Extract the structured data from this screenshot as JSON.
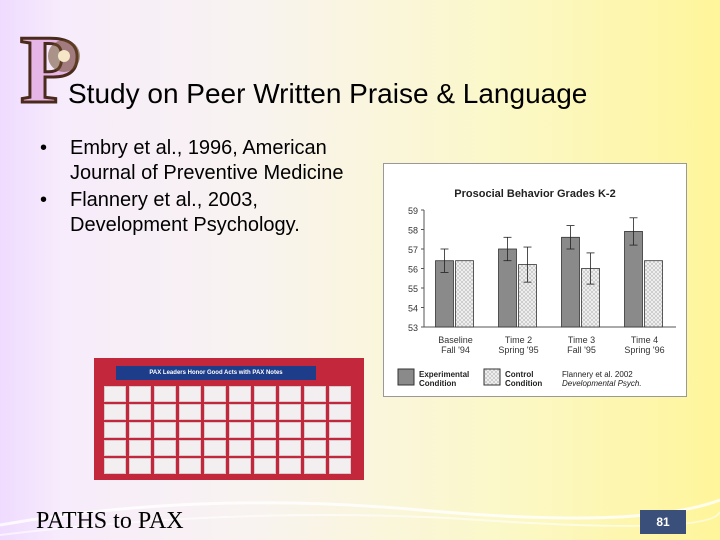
{
  "slide": {
    "logo_letter": "P",
    "title": "Study on Peer Written Praise & Language",
    "bullets": [
      "Embry et al., 1996, American Journal of Preventive Medicine",
      "Flannery et al., 2003, Development Psychology."
    ],
    "photo_banner": "PAX Leaders Honor Good Acts with PAX Notes",
    "footer_brand": "PATHS to PAX",
    "page_number": "81",
    "colors": {
      "experimental": "#8a8a8a",
      "control": "#e6e6e6",
      "page_badge": "#3a4f7a",
      "photo_board": "#c3273b"
    }
  },
  "chart_data": {
    "type": "bar",
    "title": "Prosocial Behavior Grades K-2",
    "categories": [
      "Baseline Fall '94",
      "Time 2 Spring '95",
      "Time 3 Fall '95",
      "Time 4 Spring '96"
    ],
    "category_lines": [
      [
        "Baseline",
        "Fall '94"
      ],
      [
        "Time 2",
        "Spring '95"
      ],
      [
        "Time 3",
        "Fall '95"
      ],
      [
        "Time 4",
        "Spring '96"
      ]
    ],
    "series": [
      {
        "name": "Experimental Condition",
        "values": [
          56.4,
          57.0,
          57.6,
          57.9
        ],
        "err": [
          0.6,
          0.6,
          0.6,
          0.7
        ]
      },
      {
        "name": "Control Condition",
        "values": [
          56.4,
          56.2,
          56.0,
          56.4
        ],
        "err": [
          0,
          0.9,
          0.8,
          0
        ]
      }
    ],
    "ylim": [
      53,
      59
    ],
    "yticks": [
      "53",
      "54",
      "55",
      "56",
      "57",
      "58",
      "59"
    ],
    "legend": [
      "Experimental Condition",
      "Control Condition"
    ],
    "legend_lines": [
      [
        "Experimental",
        "Condition"
      ],
      [
        "Control",
        "Condition"
      ]
    ],
    "source_lines": [
      "Flannery et al. 2002",
      "Developmental Psych."
    ],
    "legend_position": "bottom"
  }
}
